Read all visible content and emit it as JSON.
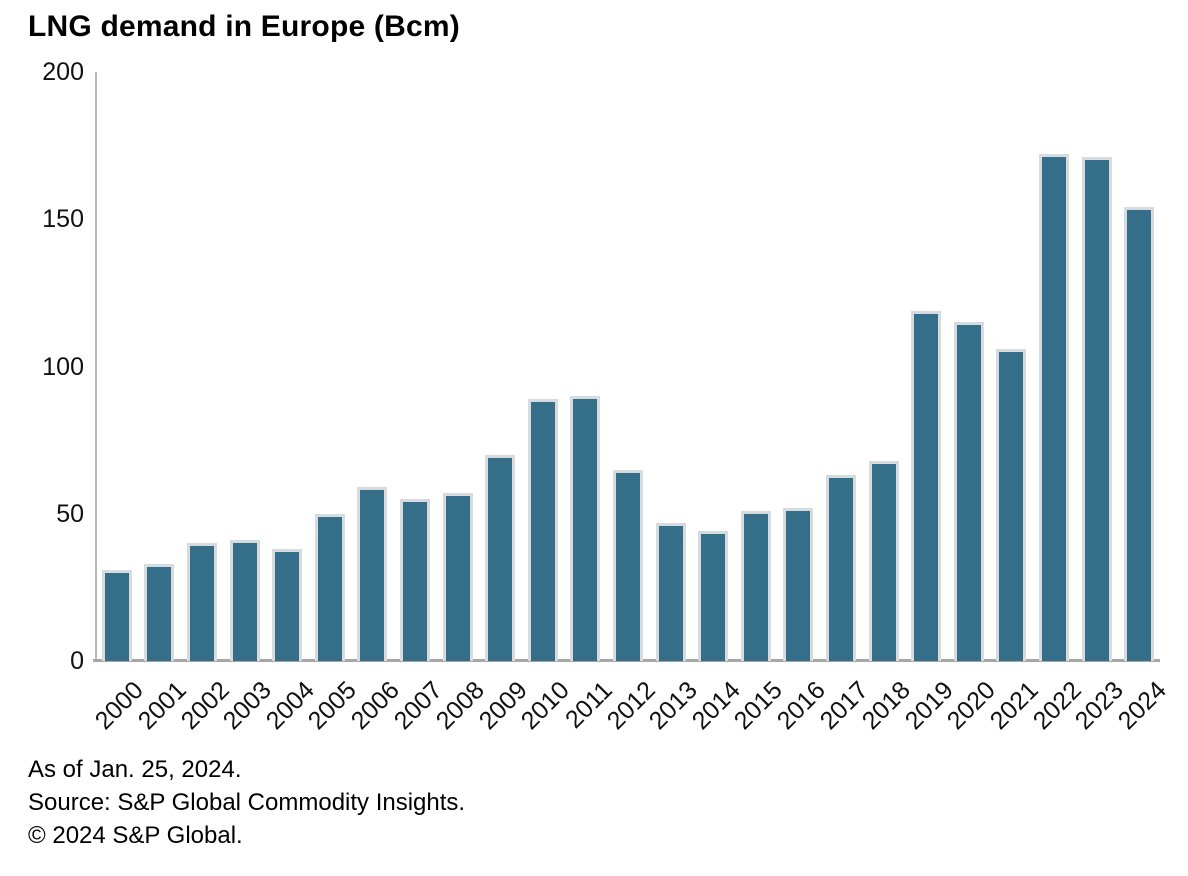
{
  "title": "LNG demand in Europe (Bcm)",
  "footer": {
    "as_of": "As of Jan. 25, 2024.",
    "source": "Source: S&P Global Commodity Insights.",
    "copyright": "© 2024 S&P Global."
  },
  "colors": {
    "bar_fill": "#346e89",
    "bar_border": "#d7dbde",
    "axis_line": "#a6a6a6",
    "text": "#000000"
  },
  "chart_data": {
    "type": "bar",
    "title": "LNG demand in Europe (Bcm)",
    "xlabel": "",
    "ylabel": "",
    "categories": [
      "2000",
      "2001",
      "2002",
      "2003",
      "2004",
      "2005",
      "2006",
      "2007",
      "2008",
      "2009",
      "2010",
      "2011",
      "2012",
      "2013",
      "2014",
      "2015",
      "2016",
      "2017",
      "2018",
      "2019",
      "2020",
      "2021",
      "2022",
      "2023",
      "2024"
    ],
    "values": [
      31,
      33,
      40,
      41,
      38,
      50,
      59,
      55,
      57,
      70,
      89,
      90,
      65,
      47,
      44,
      51,
      52,
      63,
      68,
      119,
      115,
      106,
      172,
      171,
      154
    ],
    "ylim": [
      0,
      200
    ],
    "yticks": [
      0,
      50,
      100,
      150,
      200
    ],
    "grid": false,
    "legend_position": "none"
  }
}
